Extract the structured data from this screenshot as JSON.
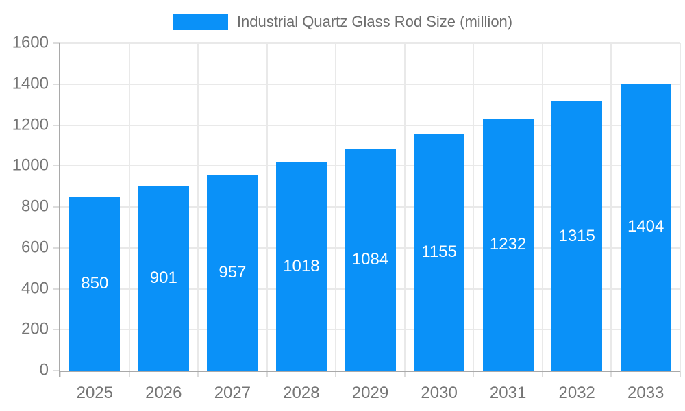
{
  "chart_data": {
    "type": "bar",
    "title": "Industrial Quartz Glass Rod Size (million)",
    "legend_position": "top",
    "categories": [
      "2025",
      "2026",
      "2027",
      "2028",
      "2029",
      "2030",
      "2031",
      "2032",
      "2033"
    ],
    "series": [
      {
        "name": "Industrial Quartz Glass Rod Size (million)",
        "values": [
          850,
          901,
          957,
          1018,
          1084,
          1155,
          1232,
          1315,
          1404
        ]
      }
    ],
    "values": [
      850,
      901,
      957,
      1018,
      1084,
      1155,
      1232,
      1315,
      1404
    ],
    "bar_labels_visible": true,
    "xlabel": "",
    "ylabel": "",
    "ylim": [
      0,
      1600
    ],
    "yticks": [
      0,
      200,
      400,
      600,
      800,
      1000,
      1200,
      1400,
      1600
    ],
    "grid": true,
    "colors": {
      "bar": "#0a91f8",
      "bar_label": "#ffffff",
      "axis_text": "#757575",
      "legend_text": "#6e6e6e",
      "gridline": "#e9e9e9",
      "axis_line": "#a9a9a9",
      "tick": "#dcdcdc",
      "background": "#ffffff"
    }
  }
}
